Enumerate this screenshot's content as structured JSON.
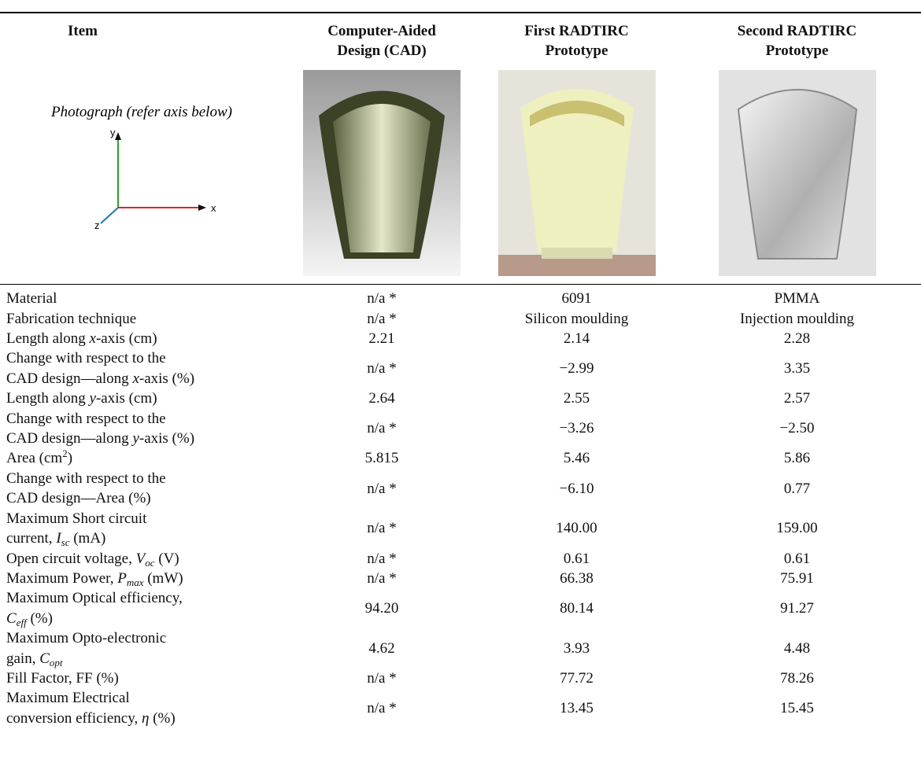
{
  "header": [
    [
      "Item"
    ],
    [
      "Computer-Aided",
      "Design (CAD)"
    ],
    [
      "First RADTIRC",
      "Prototype"
    ],
    [
      "Second RADTIRC",
      "Prototype"
    ]
  ],
  "photo_row": {
    "label": "Photograph (refer axis below)",
    "axes": {
      "x": "x",
      "y": "y",
      "z": "z"
    }
  },
  "rows": [
    {
      "label": [
        [
          "Material"
        ]
      ],
      "cells": [
        "n/a *",
        "6091",
        "PMMA"
      ]
    },
    {
      "label": [
        [
          "Fabrication technique"
        ]
      ],
      "cells": [
        "n/a *",
        "Silicon moulding",
        "Injection moulding"
      ]
    },
    {
      "label": [
        [
          "Length along ",
          {
            "text": "x",
            "style": "italic"
          },
          "-axis (cm)"
        ]
      ],
      "cells": [
        "2.21",
        "2.14",
        "2.28"
      ]
    },
    {
      "label": [
        [
          "Change with respect to the"
        ],
        [
          "CAD design—along ",
          {
            "text": "x",
            "style": "italic"
          },
          "-axis (%)"
        ]
      ],
      "cells": [
        "n/a *",
        "−2.99",
        "3.35"
      ]
    },
    {
      "label": [
        [
          "Length along ",
          {
            "text": "y",
            "style": "italic"
          },
          "-axis (cm)"
        ]
      ],
      "cells": [
        "2.64",
        "2.55",
        "2.57"
      ]
    },
    {
      "label": [
        [
          "Change with respect to the"
        ],
        [
          "CAD design—along ",
          {
            "text": "y",
            "style": "italic"
          },
          "-axis (%)"
        ]
      ],
      "cells": [
        "n/a *",
        "−3.26",
        "−2.50"
      ]
    },
    {
      "label": [
        [
          "Area (cm",
          {
            "text": "2",
            "style": "superscript"
          },
          ")"
        ]
      ],
      "cells": [
        "5.815",
        "5.46",
        "5.86"
      ]
    },
    {
      "label": [
        [
          "Change with respect to the"
        ],
        [
          "CAD design—Area (%)"
        ]
      ],
      "cells": [
        "n/a *",
        "−6.10",
        "0.77"
      ]
    },
    {
      "label": [
        [
          "Maximum Short circuit"
        ],
        [
          "current, ",
          {
            "text": "I",
            "style": "italic"
          },
          {
            "text": "sc",
            "style": "italic-subscript"
          },
          " (mA)"
        ]
      ],
      "cells": [
        "n/a *",
        "140.00",
        "159.00"
      ]
    },
    {
      "label": [
        [
          "Open circuit voltage, ",
          {
            "text": "V",
            "style": "italic"
          },
          {
            "text": "oc",
            "style": "italic-subscript"
          },
          " (V)"
        ]
      ],
      "cells": [
        "n/a *",
        "0.61",
        "0.61"
      ]
    },
    {
      "label": [
        [
          "Maximum Power, ",
          {
            "text": "P",
            "style": "italic"
          },
          {
            "text": "max",
            "style": "italic-subscript"
          },
          " (mW)"
        ]
      ],
      "cells": [
        "n/a *",
        "66.38",
        "75.91"
      ]
    },
    {
      "label": [
        [
          "Maximum Optical efficiency,"
        ],
        [
          {
            "text": "C",
            "style": "italic"
          },
          {
            "text": "eff",
            "style": "italic-subscript"
          },
          " (%)"
        ]
      ],
      "cells": [
        "94.20",
        "80.14",
        "91.27"
      ]
    },
    {
      "label": [
        [
          "Maximum Opto-electronic"
        ],
        [
          "gain, ",
          {
            "text": "C",
            "style": "italic"
          },
          {
            "text": "opt",
            "style": "italic-subscript"
          }
        ]
      ],
      "cells": [
        "4.62",
        "3.93",
        "4.48"
      ]
    },
    {
      "label": [
        [
          "Fill Factor, FF (%)"
        ]
      ],
      "cells": [
        "n/a *",
        "77.72",
        "78.26"
      ]
    },
    {
      "label": [
        [
          "Maximum Electrical"
        ],
        [
          "conversion efficiency, ",
          {
            "text": "η",
            "style": "italic"
          },
          " (%)"
        ]
      ],
      "cells": [
        "n/a *",
        "13.45",
        "15.45"
      ]
    }
  ]
}
